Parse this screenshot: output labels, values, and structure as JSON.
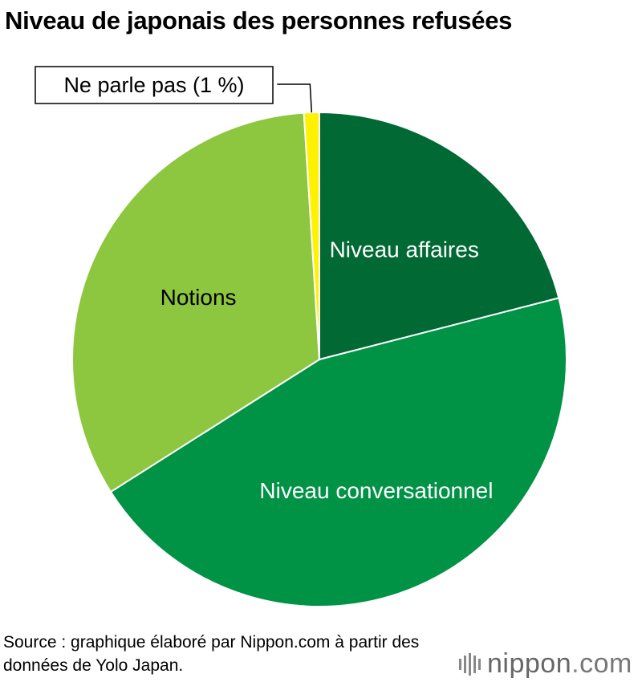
{
  "title": "Niveau de japonais des personnes refusées",
  "chart_data": {
    "type": "pie",
    "start_angle_deg": 0,
    "direction": "clockwise",
    "slices": [
      {
        "label": "Niveau affaires",
        "value": 21,
        "color": "#006934",
        "label_color": "#ffffff"
      },
      {
        "label": "Niveau conversationnel",
        "value": 45,
        "color": "#009245",
        "label_color": "#ffffff"
      },
      {
        "label": "Notions",
        "value": 33,
        "color": "#8dc63f",
        "label_color": "#000000"
      },
      {
        "label": "Ne parle pas (1 %)",
        "value": 1,
        "color": "#fff200",
        "label_color": "#000000",
        "callout": true
      }
    ]
  },
  "source": "Source : graphique élaboré par Nippon.com à partir des données de Yolo Japan.",
  "logo": {
    "name": "nippon",
    "dot": ".",
    "suffix": "com"
  }
}
